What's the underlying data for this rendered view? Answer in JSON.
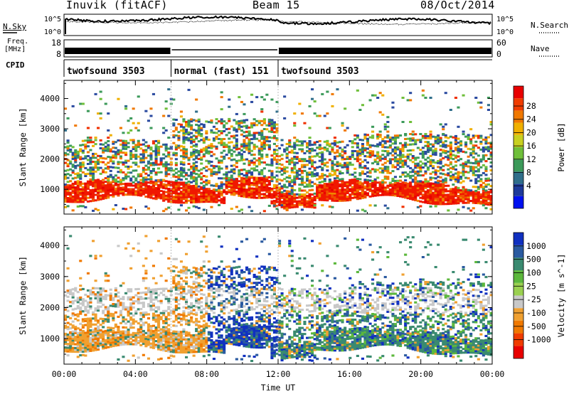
{
  "header": {
    "station": "Inuvik (fitACF)",
    "beam": "Beam 15",
    "date": "08/Oct/2014"
  },
  "side_labels": {
    "nsky": "N.Sky",
    "freq": "Freq.",
    "mhz": "[MHz]",
    "cpid": "CPID",
    "nsearch": "N.Search",
    "nave": "Nave"
  },
  "noise_ticks": [
    "10^5",
    "10^0",
    "10^5",
    "10^0"
  ],
  "freq_ticks": {
    "left": [
      "18",
      "8"
    ],
    "right": [
      "60",
      "0"
    ]
  },
  "cpid_segments": [
    {
      "label": "twofsound 3503",
      "start": 0,
      "end": 6
    },
    {
      "label": "normal (fast) 151",
      "start": 6,
      "end": 12
    },
    {
      "label": "twofsound 3503",
      "start": 12,
      "end": 24
    }
  ],
  "chart_data": [
    {
      "type": "heatmap",
      "name": "power",
      "xlabel": "",
      "ylabel": "Slant Range [km]",
      "xlim": [
        0,
        24
      ],
      "ylim": [
        180,
        4600
      ],
      "yticks": [
        1000,
        2000,
        3000,
        4000
      ],
      "colorbar_label": "Power [dB]",
      "colorbar_ticks": [
        "28",
        "24",
        "20",
        "16",
        "12",
        "8",
        "4"
      ],
      "colorbar_range": [
        0,
        30
      ],
      "colorbar_colors": [
        "#0010f0",
        "#1e3a9a",
        "#2f6e8a",
        "#3c9a5a",
        "#6fbf3a",
        "#c8d020",
        "#f0b000",
        "#f07800",
        "#f03c00",
        "#e80000"
      ],
      "bands": [
        {
          "x": [
            0,
            24
          ],
          "range": [
            700,
            1500
          ],
          "level": "high"
        },
        {
          "x": [
            0,
            16
          ],
          "range": [
            1500,
            2600
          ],
          "level": "medium"
        },
        {
          "x": [
            16,
            24
          ],
          "range": [
            1800,
            2900
          ],
          "level": "medium"
        },
        {
          "x": [
            6,
            12
          ],
          "range": [
            2600,
            3400
          ],
          "level": "medium"
        }
      ]
    },
    {
      "type": "heatmap",
      "name": "velocity",
      "xlabel": "Time UT",
      "ylabel": "Slant Range [km]",
      "xlim": [
        0,
        24
      ],
      "ylim": [
        180,
        4600
      ],
      "xticks": [
        "00:00",
        "04:00",
        "08:00",
        "12:00",
        "16:00",
        "20:00",
        "00:00"
      ],
      "yticks": [
        1000,
        2000,
        3000,
        4000
      ],
      "colorbar_label": "Velocity [m s^-1]",
      "colorbar_ticks": [
        "1000",
        "500",
        "100",
        "25",
        "-25",
        "-100",
        "-500",
        "-1000"
      ],
      "colorbar_colors": [
        "#1030c0",
        "#2a5aa0",
        "#3a8a70",
        "#5cb83c",
        "#9ad050",
        "#c8c8c8",
        "#f0a030",
        "#f07800",
        "#f03c00",
        "#e80000"
      ]
    }
  ]
}
